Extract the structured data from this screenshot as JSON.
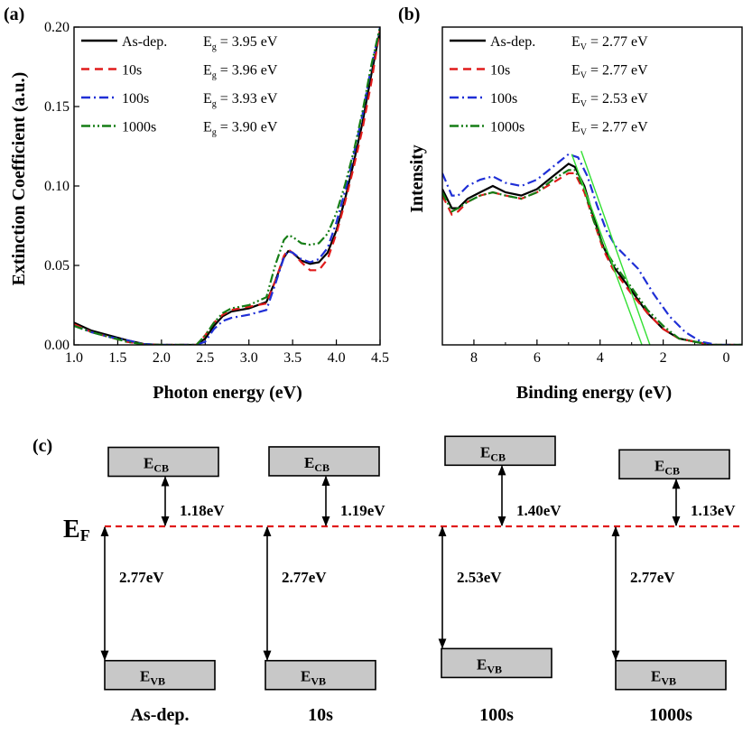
{
  "panel_labels": {
    "a": "(a)",
    "b": "(b)",
    "c": "(c)"
  },
  "chart_data": [
    {
      "type": "line",
      "panel": "(a)",
      "xlabel": "Photon energy (eV)",
      "ylabel": "Extinction Coefficient (a.u.)",
      "xlim": [
        1.0,
        4.5
      ],
      "ylim": [
        0.0,
        0.2
      ],
      "xticks": [
        "1.0",
        "1.5",
        "2.0",
        "2.5",
        "3.0",
        "3.5",
        "4.0",
        "4.5"
      ],
      "yticks": [
        "0.00",
        "0.05",
        "0.10",
        "0.15",
        "0.20"
      ],
      "legend_position": "top-left",
      "series": [
        {
          "name": "As-dep.",
          "note_main": "E",
          "note_sub": "g",
          "note_rest": " = 3.95 eV",
          "color": "#000000",
          "dash": "",
          "points": [
            [
              1.0,
              0.014
            ],
            [
              1.2,
              0.009
            ],
            [
              1.4,
              0.006
            ],
            [
              1.6,
              0.003
            ],
            [
              1.8,
              0.0005
            ],
            [
              2.0,
              0.0
            ],
            [
              2.2,
              0.0
            ],
            [
              2.4,
              0.0
            ],
            [
              2.5,
              0.004
            ],
            [
              2.6,
              0.012
            ],
            [
              2.7,
              0.018
            ],
            [
              2.8,
              0.021
            ],
            [
              3.0,
              0.023
            ],
            [
              3.2,
              0.027
            ],
            [
              3.3,
              0.04
            ],
            [
              3.4,
              0.055
            ],
            [
              3.45,
              0.059
            ],
            [
              3.5,
              0.058
            ],
            [
              3.6,
              0.053
            ],
            [
              3.7,
              0.051
            ],
            [
              3.8,
              0.052
            ],
            [
              3.9,
              0.058
            ],
            [
              4.0,
              0.072
            ],
            [
              4.1,
              0.092
            ],
            [
              4.2,
              0.115
            ],
            [
              4.3,
              0.14
            ],
            [
              4.4,
              0.17
            ],
            [
              4.5,
              0.198
            ]
          ]
        },
        {
          "name": "10s",
          "note_main": "E",
          "note_sub": "g",
          "note_rest": " = 3.96 eV",
          "color": "#e01b1b",
          "dash": "9,6",
          "points": [
            [
              1.0,
              0.013
            ],
            [
              1.2,
              0.008
            ],
            [
              1.4,
              0.005
            ],
            [
              1.6,
              0.002
            ],
            [
              1.8,
              0.0003
            ],
            [
              2.0,
              0.0
            ],
            [
              2.2,
              0.0
            ],
            [
              2.4,
              0.0
            ],
            [
              2.5,
              0.006
            ],
            [
              2.6,
              0.014
            ],
            [
              2.7,
              0.019
            ],
            [
              2.8,
              0.022
            ],
            [
              3.0,
              0.024
            ],
            [
              3.2,
              0.026
            ],
            [
              3.3,
              0.04
            ],
            [
              3.4,
              0.056
            ],
            [
              3.45,
              0.06
            ],
            [
              3.5,
              0.058
            ],
            [
              3.6,
              0.052
            ],
            [
              3.7,
              0.047
            ],
            [
              3.8,
              0.047
            ],
            [
              3.9,
              0.054
            ],
            [
              4.0,
              0.07
            ],
            [
              4.1,
              0.09
            ],
            [
              4.2,
              0.112
            ],
            [
              4.3,
              0.136
            ],
            [
              4.4,
              0.165
            ],
            [
              4.5,
              0.199
            ]
          ]
        },
        {
          "name": "100s",
          "note_main": "E",
          "note_sub": "g",
          "note_rest": " = 3.93 eV",
          "color": "#1f2fd6",
          "dash": "10,4,2,4",
          "points": [
            [
              1.0,
              0.012
            ],
            [
              1.2,
              0.008
            ],
            [
              1.4,
              0.005
            ],
            [
              1.6,
              0.003
            ],
            [
              1.8,
              0.0005
            ],
            [
              2.0,
              0.0
            ],
            [
              2.2,
              0.0
            ],
            [
              2.4,
              0.0
            ],
            [
              2.5,
              0.002
            ],
            [
              2.6,
              0.01
            ],
            [
              2.7,
              0.015
            ],
            [
              2.8,
              0.017
            ],
            [
              3.0,
              0.019
            ],
            [
              3.2,
              0.022
            ],
            [
              3.3,
              0.038
            ],
            [
              3.4,
              0.055
            ],
            [
              3.45,
              0.059
            ],
            [
              3.5,
              0.058
            ],
            [
              3.6,
              0.054
            ],
            [
              3.7,
              0.052
            ],
            [
              3.8,
              0.054
            ],
            [
              3.9,
              0.061
            ],
            [
              4.0,
              0.077
            ],
            [
              4.1,
              0.097
            ],
            [
              4.2,
              0.12
            ],
            [
              4.3,
              0.145
            ],
            [
              4.4,
              0.175
            ],
            [
              4.5,
              0.2
            ]
          ]
        },
        {
          "name": "1000s",
          "note_main": "E",
          "note_sub": "g",
          "note_rest": " = 3.90 eV",
          "color": "#157d15",
          "dash": "10,3,2,3,2,3",
          "points": [
            [
              1.0,
              0.012
            ],
            [
              1.2,
              0.008
            ],
            [
              1.4,
              0.005
            ],
            [
              1.6,
              0.002
            ],
            [
              1.8,
              0.0003
            ],
            [
              2.0,
              0.0
            ],
            [
              2.2,
              0.0
            ],
            [
              2.4,
              0.0
            ],
            [
              2.5,
              0.006
            ],
            [
              2.6,
              0.014
            ],
            [
              2.7,
              0.02
            ],
            [
              2.8,
              0.023
            ],
            [
              3.0,
              0.025
            ],
            [
              3.2,
              0.03
            ],
            [
              3.3,
              0.05
            ],
            [
              3.4,
              0.066
            ],
            [
              3.45,
              0.069
            ],
            [
              3.5,
              0.068
            ],
            [
              3.6,
              0.064
            ],
            [
              3.7,
              0.063
            ],
            [
              3.8,
              0.064
            ],
            [
              3.9,
              0.07
            ],
            [
              4.0,
              0.083
            ],
            [
              4.1,
              0.101
            ],
            [
              4.2,
              0.122
            ],
            [
              4.3,
              0.147
            ],
            [
              4.4,
              0.176
            ],
            [
              4.5,
              0.2
            ]
          ]
        }
      ]
    },
    {
      "type": "line",
      "panel": "(b)",
      "xlabel": "Binding energy (eV)",
      "ylabel": "Intensity",
      "xlim": [
        9.0,
        -0.5
      ],
      "ylim": [
        0.0,
        1.0
      ],
      "xticks": [
        "8",
        "6",
        "4",
        "2",
        "0"
      ],
      "legend_position": "top-left",
      "series": [
        {
          "name": "As-dep.",
          "note_main": "E",
          "note_sub": "V",
          "note_rest": " = 2.77 eV",
          "color": "#000000",
          "dash": "",
          "points": [
            [
              9.0,
              0.49
            ],
            [
              8.7,
              0.43
            ],
            [
              8.5,
              0.43
            ],
            [
              8.2,
              0.46
            ],
            [
              7.8,
              0.48
            ],
            [
              7.4,
              0.5
            ],
            [
              7.0,
              0.48
            ],
            [
              6.5,
              0.47
            ],
            [
              6.0,
              0.49
            ],
            [
              5.5,
              0.53
            ],
            [
              5.0,
              0.57
            ],
            [
              4.8,
              0.56
            ],
            [
              4.5,
              0.5
            ],
            [
              4.2,
              0.4
            ],
            [
              3.9,
              0.31
            ],
            [
              3.6,
              0.25
            ],
            [
              3.3,
              0.21
            ],
            [
              3.0,
              0.17
            ],
            [
              2.5,
              0.1
            ],
            [
              2.0,
              0.05
            ],
            [
              1.5,
              0.02
            ],
            [
              1.0,
              0.01
            ],
            [
              0.5,
              0.0
            ],
            [
              -0.5,
              0.0
            ]
          ]
        },
        {
          "name": "10s",
          "note_main": "E",
          "note_sub": "V",
          "note_rest": " = 2.77 eV",
          "color": "#e01b1b",
          "dash": "9,6",
          "points": [
            [
              9.0,
              0.47
            ],
            [
              8.7,
              0.41
            ],
            [
              8.5,
              0.42
            ],
            [
              8.2,
              0.45
            ],
            [
              7.8,
              0.47
            ],
            [
              7.4,
              0.48
            ],
            [
              7.0,
              0.47
            ],
            [
              6.5,
              0.46
            ],
            [
              6.0,
              0.48
            ],
            [
              5.5,
              0.51
            ],
            [
              5.0,
              0.54
            ],
            [
              4.8,
              0.54
            ],
            [
              4.5,
              0.48
            ],
            [
              4.2,
              0.39
            ],
            [
              3.9,
              0.3
            ],
            [
              3.6,
              0.24
            ],
            [
              3.3,
              0.2
            ],
            [
              3.0,
              0.16
            ],
            [
              2.5,
              0.1
            ],
            [
              2.0,
              0.05
            ],
            [
              1.5,
              0.02
            ],
            [
              1.0,
              0.01
            ],
            [
              0.5,
              0.0
            ],
            [
              -0.5,
              0.0
            ]
          ]
        },
        {
          "name": "100s",
          "note_main": "E",
          "note_sub": "V",
          "note_rest": " = 2.53 eV",
          "color": "#1f2fd6",
          "dash": "10,4,2,4",
          "points": [
            [
              9.0,
              0.54
            ],
            [
              8.7,
              0.47
            ],
            [
              8.5,
              0.47
            ],
            [
              8.2,
              0.5
            ],
            [
              7.8,
              0.52
            ],
            [
              7.4,
              0.53
            ],
            [
              7.0,
              0.51
            ],
            [
              6.5,
              0.5
            ],
            [
              6.0,
              0.52
            ],
            [
              5.5,
              0.56
            ],
            [
              5.0,
              0.6
            ],
            [
              4.7,
              0.59
            ],
            [
              4.4,
              0.53
            ],
            [
              4.1,
              0.44
            ],
            [
              3.8,
              0.36
            ],
            [
              3.5,
              0.31
            ],
            [
              3.2,
              0.28
            ],
            [
              2.8,
              0.24
            ],
            [
              2.3,
              0.16
            ],
            [
              1.8,
              0.09
            ],
            [
              1.3,
              0.04
            ],
            [
              0.8,
              0.01
            ],
            [
              0.3,
              0.0
            ],
            [
              -0.5,
              0.0
            ]
          ]
        },
        {
          "name": "1000s",
          "note_main": "E",
          "note_sub": "V",
          "note_rest": " = 2.77 eV",
          "color": "#157d15",
          "dash": "10,3,2,3,2,3",
          "points": [
            [
              9.0,
              0.48
            ],
            [
              8.7,
              0.42
            ],
            [
              8.5,
              0.43
            ],
            [
              8.2,
              0.45
            ],
            [
              7.8,
              0.47
            ],
            [
              7.4,
              0.48
            ],
            [
              7.0,
              0.47
            ],
            [
              6.5,
              0.46
            ],
            [
              6.0,
              0.48
            ],
            [
              5.5,
              0.52
            ],
            [
              5.0,
              0.55
            ],
            [
              4.8,
              0.55
            ],
            [
              4.5,
              0.49
            ],
            [
              4.2,
              0.39
            ],
            [
              3.9,
              0.31
            ],
            [
              3.6,
              0.26
            ],
            [
              3.3,
              0.22
            ],
            [
              3.0,
              0.18
            ],
            [
              2.5,
              0.11
            ],
            [
              2.0,
              0.06
            ],
            [
              1.5,
              0.02
            ],
            [
              1.0,
              0.01
            ],
            [
              0.5,
              0.0
            ],
            [
              -0.5,
              0.0
            ]
          ]
        }
      ],
      "fit_lines": [
        {
          "color": "#33e033",
          "points": [
            [
              4.9,
              0.6
            ],
            [
              2.6,
              -0.02
            ]
          ]
        },
        {
          "color": "#33e033",
          "points": [
            [
              4.6,
              0.61
            ],
            [
              2.35,
              -0.02
            ]
          ]
        }
      ]
    }
  ],
  "band_diagram": {
    "fermi_label_main": "E",
    "fermi_label_sub": "F",
    "fermi_color": "#e01b1b",
    "box_fill": "#c8c8c8",
    "columns": [
      {
        "name": "As-dep.",
        "cb_main": "E",
        "cb_sub": "CB",
        "vb_main": "E",
        "vb_sub": "VB",
        "cb_gap": "1.18eV",
        "vb_gap": "2.77eV",
        "cb_offset": 1.18,
        "vb_offset": 2.77
      },
      {
        "name": "10s",
        "cb_main": "E",
        "cb_sub": "CB",
        "vb_main": "E",
        "vb_sub": "VB",
        "cb_gap": "1.19eV",
        "vb_gap": "2.77eV",
        "cb_offset": 1.19,
        "vb_offset": 2.77
      },
      {
        "name": "100s",
        "cb_main": "E",
        "cb_sub": "CB",
        "vb_main": "E",
        "vb_sub": "VB",
        "cb_gap": "1.40eV",
        "vb_gap": "2.53eV",
        "cb_offset": 1.4,
        "vb_offset": 2.53
      },
      {
        "name": "1000s",
        "cb_main": "E",
        "cb_sub": "CB",
        "vb_main": "E",
        "vb_sub": "VB",
        "cb_gap": "1.13eV",
        "vb_gap": "2.77eV",
        "cb_offset": 1.13,
        "vb_offset": 2.77
      }
    ]
  }
}
